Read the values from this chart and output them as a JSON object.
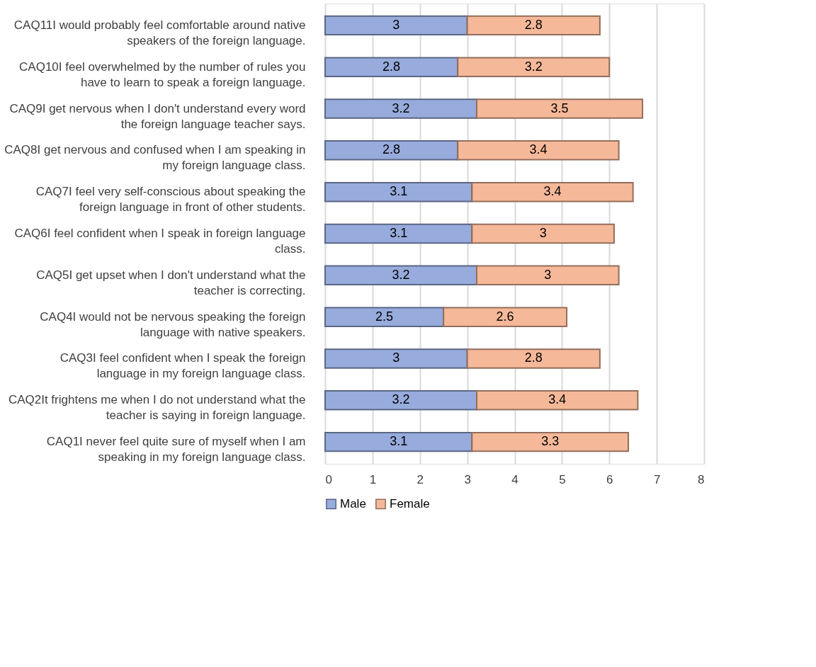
{
  "chart_data": {
    "type": "bar",
    "orientation": "horizontal",
    "stacked": true,
    "categories": [
      "CAQ11I would probably feel comfortable around native speakers of the foreign language.",
      "CAQ10I feel overwhelmed by the number of rules you have to learn to speak a foreign language.",
      "CAQ9I get nervous when I don't understand every word the foreign language teacher says.",
      "CAQ8I get nervous and confused when I am speaking in my foreign language class.",
      "CAQ7I feel very self-conscious about speaking the foreign language in front of other students.",
      "CAQ6I feel confident when I speak in foreign language class.",
      "CAQ5I get upset when I don't understand what the teacher is correcting.",
      "CAQ4I would not be nervous speaking the foreign language with native speakers.",
      "CAQ3I feel confident when I speak the foreign language  in my foreign language class.",
      "CAQ2It frightens me when I do not understand what the teacher is saying in foreign language.",
      "CAQ1I never feel quite sure of myself when I am speaking in my foreign language class."
    ],
    "series": [
      {
        "name": "Male",
        "color": "#97abdc",
        "values": [
          3,
          2.8,
          3.2,
          2.8,
          3.1,
          3.1,
          3.2,
          2.5,
          3,
          3.2,
          3.1
        ]
      },
      {
        "name": "Female",
        "color": "#f5b899",
        "values": [
          2.8,
          3.2,
          3.5,
          3.4,
          3.4,
          3,
          3,
          2.6,
          2.8,
          3.4,
          3.3
        ]
      }
    ],
    "xlim": [
      0,
      8
    ],
    "xticks": [
      0,
      1,
      2,
      3,
      4,
      5,
      6,
      7,
      8
    ],
    "grid": "x",
    "legend": "bottom",
    "data_labels": true
  }
}
